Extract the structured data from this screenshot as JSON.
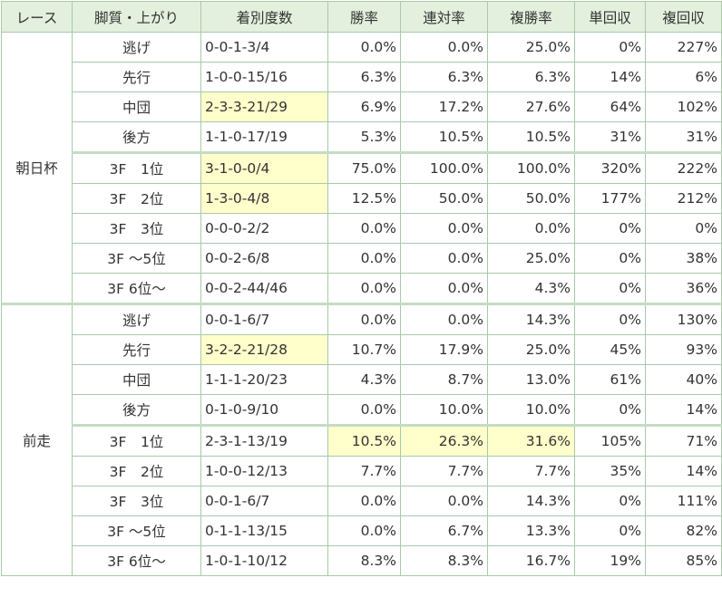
{
  "headers": [
    "レース",
    "脚質・上がり",
    "着別度数",
    "勝率",
    "連対率",
    "複勝率",
    "単回収",
    "複回収"
  ],
  "groups": [
    {
      "race": "朝日杯",
      "rows": [
        {
          "label": "逃げ",
          "record": "0-0-1-3/4",
          "win": "0.0%",
          "quinella": "0.0%",
          "place": "25.0%",
          "win_ret": "0%",
          "place_ret": "227%"
        },
        {
          "label": "先行",
          "record": "1-0-0-15/16",
          "win": "6.3%",
          "quinella": "6.3%",
          "place": "6.3%",
          "win_ret": "14%",
          "place_ret": "6%"
        },
        {
          "label": "中団",
          "record": "2-3-3-21/29",
          "win": "6.9%",
          "quinella": "17.2%",
          "place": "27.6%",
          "win_ret": "64%",
          "place_ret": "102%"
        },
        {
          "label": "後方",
          "record": "1-1-0-17/19",
          "win": "5.3%",
          "quinella": "10.5%",
          "place": "10.5%",
          "win_ret": "31%",
          "place_ret": "31%"
        },
        {
          "label": "3F　1位",
          "record": "3-1-0-0/4",
          "win": "75.0%",
          "quinella": "100.0%",
          "place": "100.0%",
          "win_ret": "320%",
          "place_ret": "222%"
        },
        {
          "label": "3F　2位",
          "record": "1-3-0-4/8",
          "win": "12.5%",
          "quinella": "50.0%",
          "place": "50.0%",
          "win_ret": "177%",
          "place_ret": "212%"
        },
        {
          "label": "3F　3位",
          "record": "0-0-0-2/2",
          "win": "0.0%",
          "quinella": "0.0%",
          "place": "0.0%",
          "win_ret": "0%",
          "place_ret": "0%"
        },
        {
          "label": "3F ～5位",
          "record": "0-0-2-6/8",
          "win": "0.0%",
          "quinella": "0.0%",
          "place": "25.0%",
          "win_ret": "0%",
          "place_ret": "38%"
        },
        {
          "label": "3F 6位～",
          "record": "0-0-2-44/46",
          "win": "0.0%",
          "quinella": "0.0%",
          "place": "4.3%",
          "win_ret": "0%",
          "place_ret": "36%"
        }
      ]
    },
    {
      "race": "前走",
      "rows": [
        {
          "label": "逃げ",
          "record": "0-0-1-6/7",
          "win": "0.0%",
          "quinella": "0.0%",
          "place": "14.3%",
          "win_ret": "0%",
          "place_ret": "130%"
        },
        {
          "label": "先行",
          "record": "3-2-2-21/28",
          "win": "10.7%",
          "quinella": "17.9%",
          "place": "25.0%",
          "win_ret": "45%",
          "place_ret": "93%"
        },
        {
          "label": "中団",
          "record": "1-1-1-20/23",
          "win": "4.3%",
          "quinella": "8.7%",
          "place": "13.0%",
          "win_ret": "61%",
          "place_ret": "40%"
        },
        {
          "label": "後方",
          "record": "0-1-0-9/10",
          "win": "0.0%",
          "quinella": "10.0%",
          "place": "10.0%",
          "win_ret": "0%",
          "place_ret": "14%"
        },
        {
          "label": "3F　1位",
          "record": "2-3-1-13/19",
          "win": "10.5%",
          "quinella": "26.3%",
          "place": "31.6%",
          "win_ret": "105%",
          "place_ret": "71%"
        },
        {
          "label": "3F　2位",
          "record": "1-0-0-12/13",
          "win": "7.7%",
          "quinella": "7.7%",
          "place": "7.7%",
          "win_ret": "35%",
          "place_ret": "14%"
        },
        {
          "label": "3F　3位",
          "record": "0-0-1-6/7",
          "win": "0.0%",
          "quinella": "0.0%",
          "place": "14.3%",
          "win_ret": "0%",
          "place_ret": "111%"
        },
        {
          "label": "3F ～5位",
          "record": "0-1-1-13/15",
          "win": "0.0%",
          "quinella": "6.7%",
          "place": "13.3%",
          "win_ret": "0%",
          "place_ret": "82%"
        },
        {
          "label": "3F 6位～",
          "record": "1-0-1-10/12",
          "win": "8.3%",
          "quinella": "8.3%",
          "place": "16.7%",
          "win_ret": "19%",
          "place_ret": "85%"
        }
      ]
    }
  ],
  "colors": {
    "header_bg": "#e3f0dd",
    "highlight_bg": "#ffffcc",
    "border": "#a9c9a9"
  }
}
